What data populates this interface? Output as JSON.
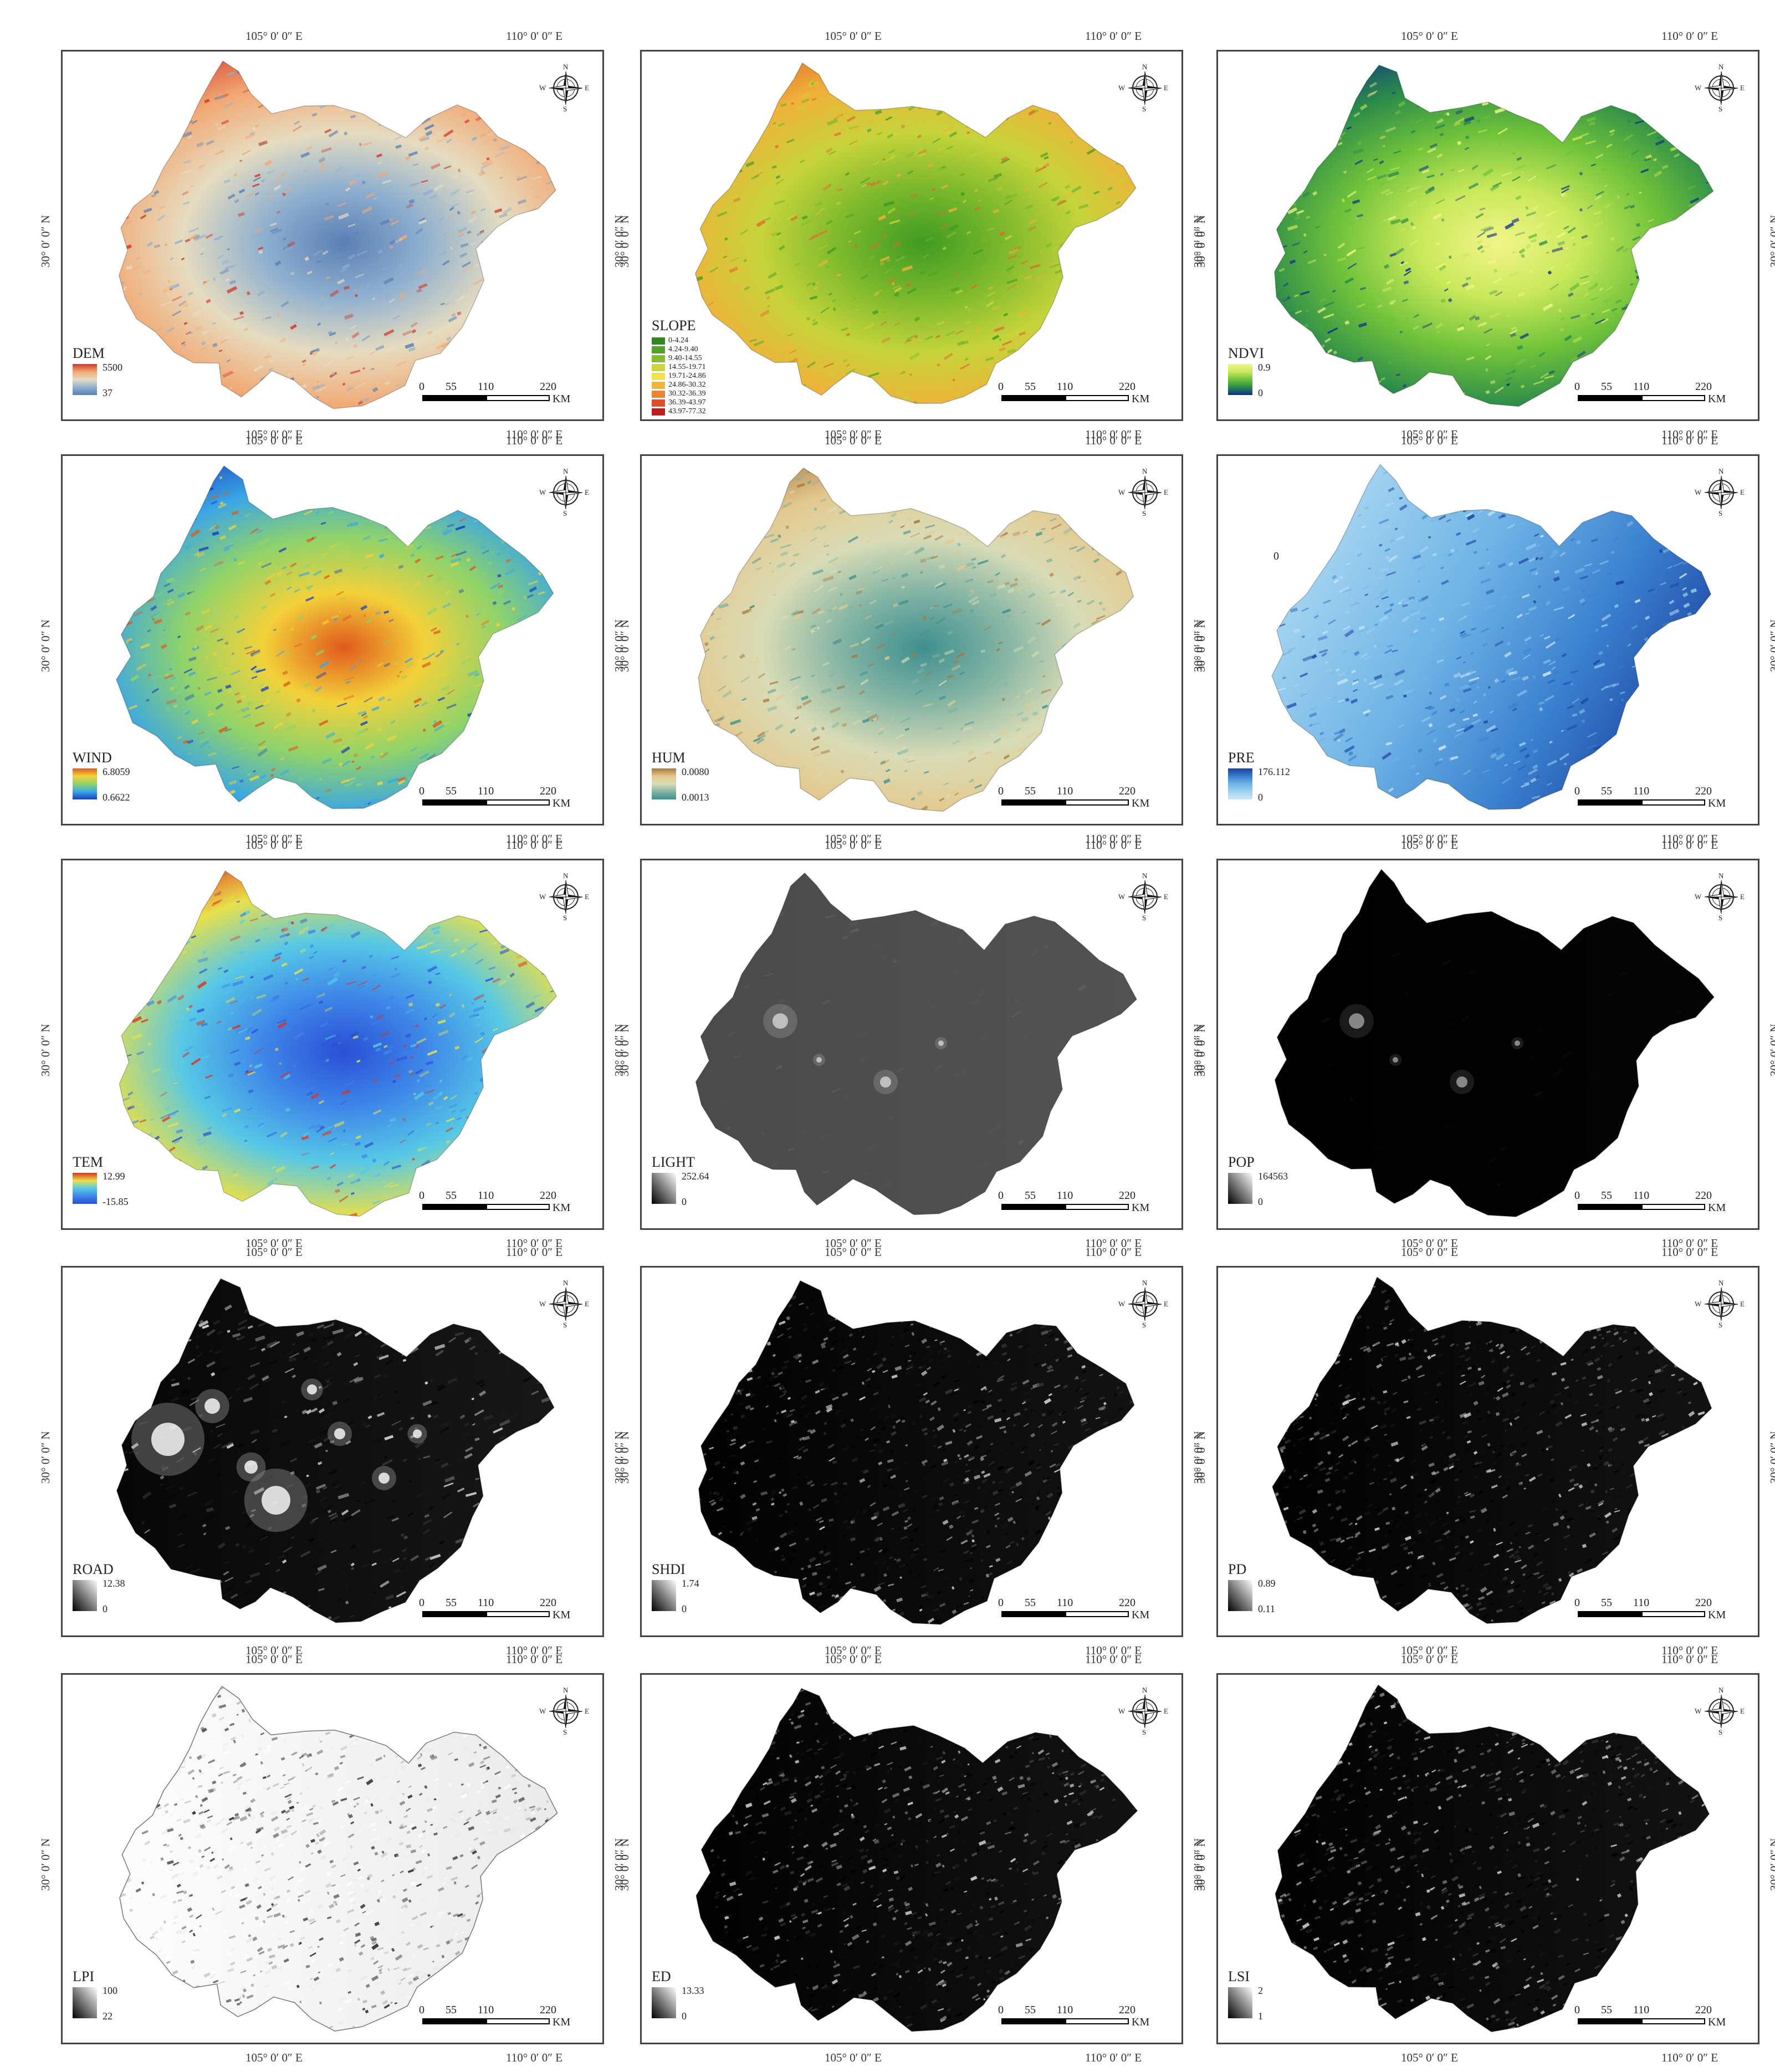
{
  "common": {
    "lon_left": "105° 0′ 0″ E",
    "lon_right": "110° 0′ 0″ E",
    "lat": "30° 0′ 0″ N",
    "scale_ticks": [
      "0",
      "55",
      "110",
      "220"
    ],
    "scale_unit": "KM",
    "compass": {
      "n": "N",
      "s": "S",
      "e": "E",
      "w": "W"
    }
  },
  "panels": [
    {
      "key": "dem",
      "title": "DEM",
      "max": "5500",
      "min": "37",
      "palette": [
        "#5b7fb5",
        "#8fb0cf",
        "#e6dcc0",
        "#f2a873",
        "#d03a2c"
      ],
      "pattern": "edge"
    },
    {
      "key": "slope",
      "title": "SLOPE",
      "classes": [
        {
          "label": "0-4.24",
          "color": "#2c8a1e"
        },
        {
          "label": "4.24-9.40",
          "color": "#4ea424"
        },
        {
          "label": "9.40-14.55",
          "color": "#86bb2e"
        },
        {
          "label": "14.55-19.71",
          "color": "#c9d83a"
        },
        {
          "label": "19.71-24.86",
          "color": "#f1e24a"
        },
        {
          "label": "24.86-30.32",
          "color": "#f3b43c"
        },
        {
          "label": "30.32-36.39",
          "color": "#ee8430"
        },
        {
          "label": "36.39-43.97",
          "color": "#e04e28"
        },
        {
          "label": "43.97-77.32",
          "color": "#c21d1d"
        }
      ],
      "palette": [
        "#3f9b22",
        "#7ab82c",
        "#c6d43a",
        "#f0b23a",
        "#e06a2c"
      ],
      "pattern": "edge"
    },
    {
      "key": "ndvi",
      "title": "NDVI",
      "max": "0.9",
      "min": "0",
      "palette": [
        "#0d2e8c",
        "#2a8a4a",
        "#6fc23a",
        "#c9e85a",
        "#f3f58a"
      ],
      "pattern": "center"
    },
    {
      "key": "wind",
      "title": "WIND",
      "max": "6.8059",
      "min": "0.6622",
      "palette": [
        "#1a3fbf",
        "#3aa6e6",
        "#8fd36a",
        "#f3d23a",
        "#e05a1c"
      ],
      "pattern": "center"
    },
    {
      "key": "hum",
      "title": "HUM",
      "max": "0.0080",
      "min": "0.0013",
      "palette": [
        "#3f8f8f",
        "#82b4a4",
        "#d9dcb6",
        "#e4c98e",
        "#a8773f"
      ],
      "pattern": "edge"
    },
    {
      "key": "pre",
      "title": "PRE",
      "max": "176.112",
      "min": "0",
      "stray": "0",
      "palette": [
        "#cfe8f6",
        "#9fd1ef",
        "#6fb4e6",
        "#3a80cf",
        "#1a3f9f"
      ],
      "pattern": "east"
    },
    {
      "key": "tem",
      "title": "TEM",
      "max": "12.99",
      "min": "-15.85",
      "palette": [
        "#2a4fd6",
        "#3e86e8",
        "#56c8e6",
        "#e8e04a",
        "#e0301c"
      ],
      "pattern": "edge"
    },
    {
      "key": "light",
      "title": "LIGHT",
      "max": "252.64",
      "min": "0",
      "palette": [
        "#4a4a4a",
        "#545454",
        "#5e5e5e",
        "#8a8a8a",
        "#cfcfcf"
      ],
      "pattern": "flat"
    },
    {
      "key": "pop",
      "title": "POP",
      "max": "164563",
      "min": "0",
      "palette": [
        "#000000",
        "#050505",
        "#0c0c0c",
        "#3a3a3a",
        "#9a9a9a"
      ],
      "pattern": "flat"
    },
    {
      "key": "road",
      "title": "ROAD",
      "max": "12.38",
      "min": "0",
      "palette": [
        "#050505",
        "#1a1a1a",
        "#3a3a3a",
        "#8a8a8a",
        "#f5f5f5"
      ],
      "pattern": "spots"
    },
    {
      "key": "shdi",
      "title": "SHDI",
      "max": "1.74",
      "min": "0",
      "palette": [
        "#000000",
        "#151515",
        "#3a3a3a",
        "#8a8a8a",
        "#e0e0e0"
      ],
      "pattern": "noise"
    },
    {
      "key": "pd",
      "title": "PD",
      "max": "0.89",
      "min": "0.11",
      "palette": [
        "#000000",
        "#151515",
        "#3a3a3a",
        "#8a8a8a",
        "#e0e0e0"
      ],
      "pattern": "noise"
    },
    {
      "key": "lpi",
      "title": "LPI",
      "max": "100",
      "min": "22",
      "palette": [
        "#ffffff",
        "#e8e8e8",
        "#b0b0b0",
        "#5a5a5a",
        "#1a1a1a"
      ],
      "pattern": "noise"
    },
    {
      "key": "ed",
      "title": "ED",
      "max": "13.33",
      "min": "0",
      "palette": [
        "#000000",
        "#151515",
        "#3a3a3a",
        "#8a8a8a",
        "#e0e0e0"
      ],
      "pattern": "noise"
    },
    {
      "key": "lsi",
      "title": "LSI",
      "max": "2",
      "min": "1",
      "palette": [
        "#000000",
        "#151515",
        "#3a3a3a",
        "#8a8a8a",
        "#e0e0e0"
      ],
      "pattern": "noise"
    }
  ]
}
